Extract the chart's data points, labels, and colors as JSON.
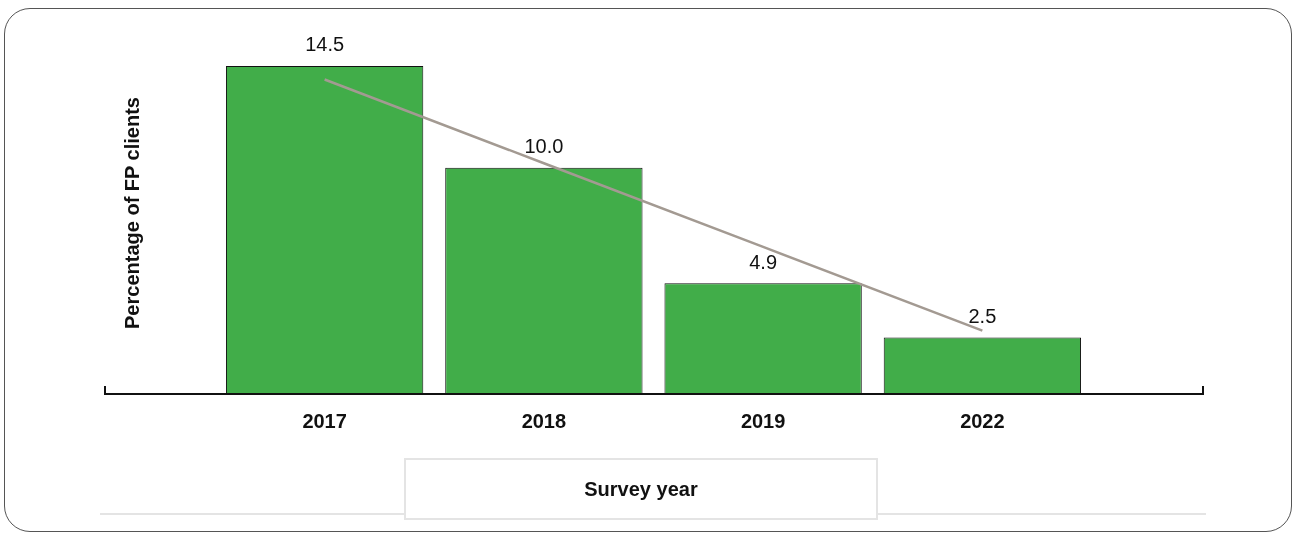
{
  "chart_data": {
    "type": "bar",
    "xlabel": "Survey year",
    "ylabel": "Percentage of FP clients",
    "categories": [
      "2017",
      "2018",
      "2019",
      "2022"
    ],
    "series": [
      {
        "color": "#41ad49",
        "values": [
          14.5,
          10.0,
          4.9,
          2.5
        ],
        "value_labels": [
          "14.5",
          "10.0",
          "4.9",
          "2.5"
        ]
      },
      {
        "type": "line",
        "color": "#a39a92",
        "values": [
          13.9,
          10.2,
          6.5,
          2.8
        ]
      }
    ],
    "grid": false,
    "legend": false,
    "marker": "none"
  }
}
